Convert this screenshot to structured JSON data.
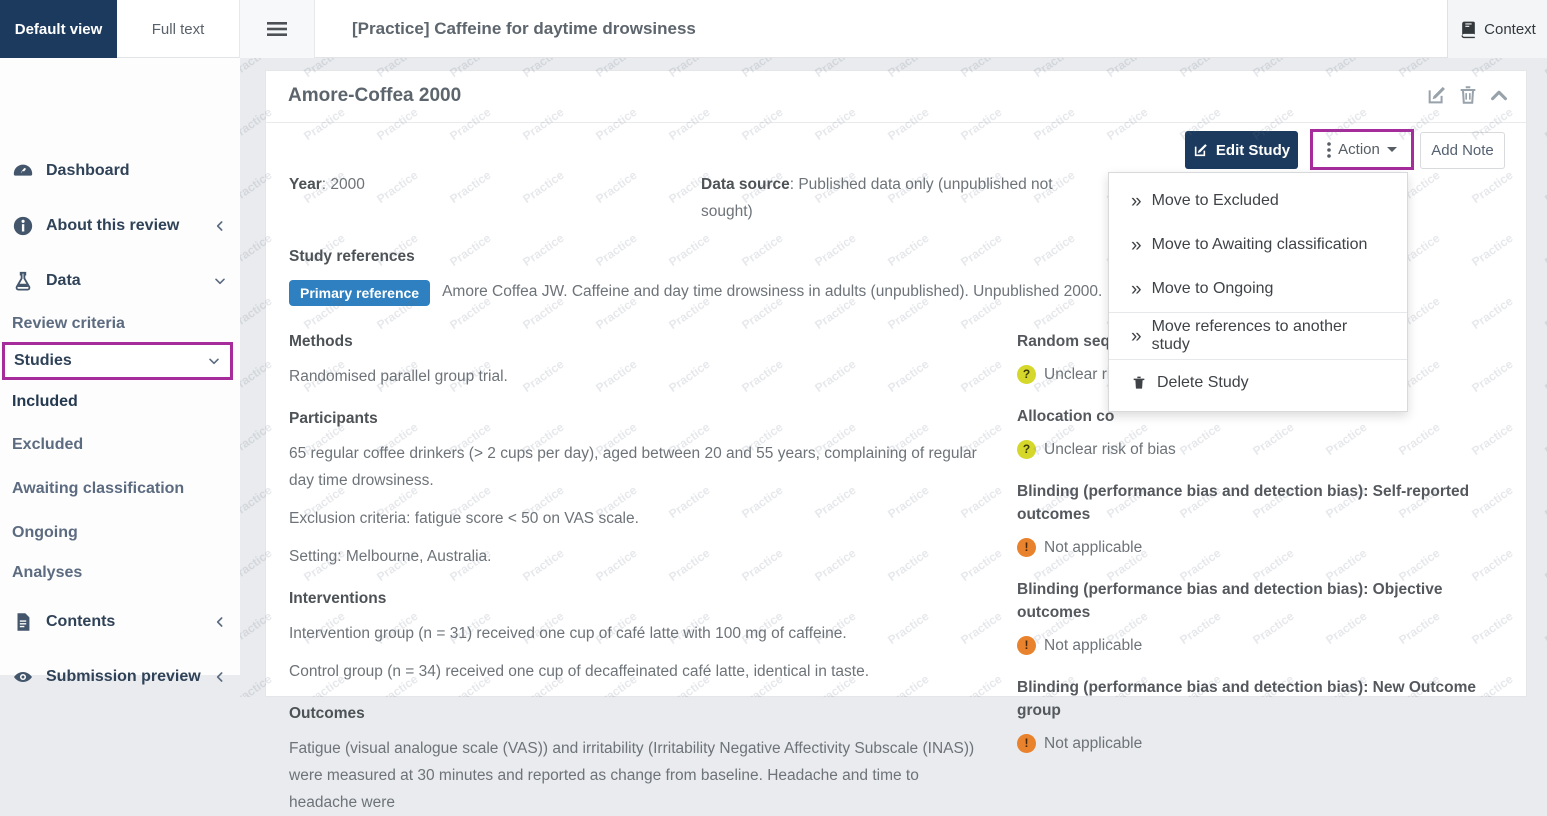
{
  "topbar": {
    "tabs": [
      {
        "label": "Default view",
        "active": true
      },
      {
        "label": "Full text",
        "active": false
      }
    ],
    "title": "[Practice] Caffeine for daytime drowsiness",
    "context_label": "Context"
  },
  "sidebar": {
    "items": [
      {
        "label": "Dashboard",
        "icon": "dashboard"
      },
      {
        "label": "About this review",
        "icon": "info",
        "chevron": "left"
      },
      {
        "label": "Data",
        "icon": "flask",
        "chevron": "down"
      },
      {
        "label": "Review criteria"
      },
      {
        "label": "Studies",
        "chevron": "down",
        "highlighted": true
      },
      {
        "label": "Included"
      },
      {
        "label": "Excluded"
      },
      {
        "label": "Awaiting classification"
      },
      {
        "label": "Ongoing"
      },
      {
        "label": "Analyses"
      },
      {
        "label": "Contents",
        "icon": "document",
        "chevron": "left"
      },
      {
        "label": "Submission preview",
        "icon": "eye",
        "chevron": "left"
      }
    ]
  },
  "card": {
    "title": "Amore-Coffea 2000",
    "buttons": {
      "edit_study": "Edit Study",
      "action": "Action",
      "add_note": "Add Note"
    },
    "fields": {
      "year_label": "Year",
      "year_value": ": 2000",
      "data_source_label": "Data source",
      "data_source_value": ": Published data only (unpublished not sought)",
      "study_references_label": "Study references",
      "primary_reference_badge": "Primary reference",
      "reference_text": "Amore Coffea JW. Caffeine and day time drowsiness in adults (unpublished). Unpublished 2000."
    },
    "sections": {
      "methods_h": "Methods",
      "methods_p1": "Randomised parallel group trial.",
      "participants_h": "Participants",
      "participants_p1": "65 regular coffee drinkers (> 2 cups per day), aged between 20 and 55 years, complaining of regular day time drowsiness.",
      "participants_p2": "Exclusion criteria: fatigue score < 50 on VAS scale.",
      "participants_p3": "Setting: Melbourne, Australia.",
      "interventions_h": "Interventions",
      "interventions_p1": "Intervention group (n = 31) received one cup of café latte with 100 mg of caffeine.",
      "interventions_p2": "Control group (n = 34) received one cup of decaffeinated café latte, identical in taste.",
      "outcomes_h": "Outcomes",
      "outcomes_p1": "Fatigue (visual analogue scale (VAS)) and irritability (Irritability Negative Affectivity Subscale (INAS)) were measured at 30 minutes and reported as change from baseline. Headache and time to headache were"
    },
    "risk_of_bias": [
      {
        "heading": "Random sequ",
        "rating": "Unclear ris",
        "level": "unclear",
        "glyph": "?"
      },
      {
        "heading": "Allocation co",
        "rating": "Unclear risk of bias",
        "level": "unclear",
        "glyph": "?"
      },
      {
        "heading": "Blinding (performance bias and detection bias): Self-reported outcomes",
        "rating": "Not applicable",
        "level": "na",
        "glyph": "!"
      },
      {
        "heading": "Blinding (performance bias and detection bias): Objective outcomes",
        "rating": "Not applicable",
        "level": "na",
        "glyph": "!"
      },
      {
        "heading": "Blinding (performance bias and detection bias): New Outcome group",
        "rating": "Not applicable",
        "level": "na",
        "glyph": "!"
      }
    ]
  },
  "action_menu": {
    "items": [
      {
        "label": "Move to Excluded",
        "glyph": "»",
        "icon": "double-angle"
      },
      {
        "label": "Move to Awaiting classification",
        "glyph": "»",
        "icon": "double-angle"
      },
      {
        "label": "Move to Ongoing",
        "glyph": "»",
        "icon": "double-angle"
      },
      {
        "label": "Move references to another study",
        "glyph": "»",
        "icon": "double-angle"
      },
      {
        "label": "Delete Study",
        "icon": "trash"
      }
    ]
  },
  "watermark": {
    "text": "Practice"
  },
  "colors": {
    "navy": "#1c3a5e",
    "accent_highlight": "#a62c9c",
    "badge_blue": "#2e80c0",
    "risk_unclear_yellow": "#d6d72b",
    "risk_na_orange": "#e8822c"
  }
}
